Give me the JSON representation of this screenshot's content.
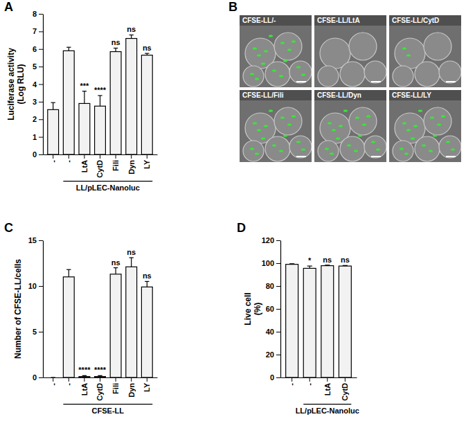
{
  "chart_data": [
    {
      "type": "bar",
      "panel": "A",
      "y_label": "Luciferase activity (Log RLU)",
      "categories": [
        "-",
        "-",
        "LtA",
        "CytD",
        "Fili",
        "Dyn",
        "LY"
      ],
      "values": [
        2.55,
        5.9,
        2.9,
        2.75,
        5.85,
        6.6,
        5.65
      ],
      "errors": [
        0.4,
        0.2,
        0.7,
        0.6,
        0.2,
        0.2,
        0.1
      ],
      "annotations": [
        null,
        null,
        "***",
        "****",
        "ns",
        "ns",
        "ns"
      ],
      "group_label": "LL/pLEC-Nanoluc",
      "group_start": 1,
      "color": "#f2f2f2",
      "ylim": [
        0,
        8
      ],
      "yticks": [
        0,
        1,
        2,
        3,
        4,
        5,
        6,
        7,
        8
      ]
    },
    {
      "type": "bar",
      "panel": "C",
      "y_label": "Number of CFSE-LL/cells",
      "categories": [
        "-",
        "-",
        "LtA",
        "CytD",
        "Fili",
        "Dyn",
        "LY"
      ],
      "values": [
        0,
        11.0,
        0.1,
        0.1,
        11.3,
        12.1,
        9.9
      ],
      "errors": [
        0,
        0.8,
        0.1,
        0.1,
        0.7,
        1.0,
        0.6
      ],
      "annotations": [
        null,
        null,
        "****",
        "****",
        "ns",
        "ns",
        "ns"
      ],
      "group_label": "CFSE-LL",
      "group_start": 1,
      "color": "#f2f2f2",
      "ylim": [
        0,
        15
      ],
      "yticks": [
        0,
        5,
        10,
        15
      ]
    },
    {
      "type": "bar",
      "panel": "D",
      "y_label": "Live cell (%)",
      "categories": [
        "-",
        "-",
        "LtA",
        "CytD"
      ],
      "values": [
        99,
        95.5,
        97.8,
        97.5
      ],
      "errors": [
        0.5,
        2,
        0.5,
        0.5
      ],
      "annotations": [
        null,
        "*",
        "ns",
        "ns"
      ],
      "group_label": "LL/pLEC-Nanoluc",
      "group_start": 1,
      "color": "#f2f2f2",
      "ylim": [
        0,
        120
      ],
      "yticks": [
        0,
        20,
        40,
        60,
        80,
        100,
        120
      ]
    }
  ],
  "panel_b": {
    "panel": "B",
    "images": [
      "CFSE-LL/-",
      "CFSE-LL/LtA",
      "CFSE-LL/CytD",
      "CFSE-LL/Fili",
      "CFSE-LL/Dyn",
      "CFSE-LL/LY"
    ]
  }
}
